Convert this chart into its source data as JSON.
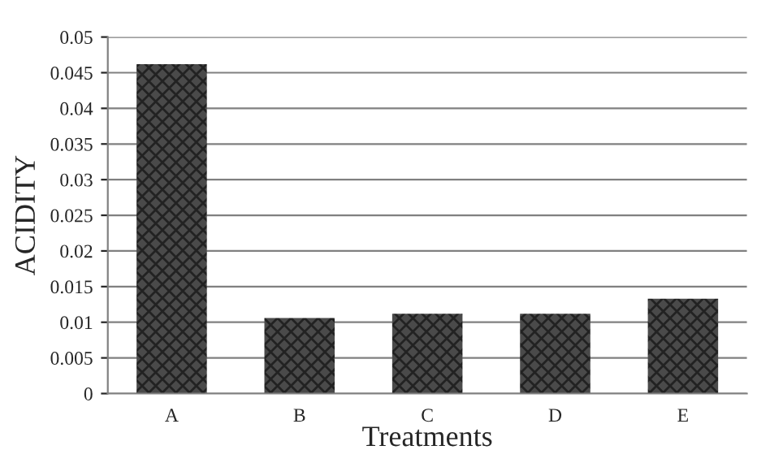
{
  "chart_data": {
    "type": "bar",
    "xlabel": "Treatments",
    "ylabel": "ACIDITY",
    "categories": [
      "A",
      "B",
      "C",
      "D",
      "E"
    ],
    "values": [
      0.0462,
      0.0106,
      0.0112,
      0.0112,
      0.0133
    ],
    "color": "#4a4a4a",
    "ylim": [
      0,
      0.05
    ],
    "yticks": [
      0,
      0.005,
      0.01,
      0.015,
      0.02,
      0.025,
      0.03,
      0.035,
      0.04,
      0.045,
      0.05
    ],
    "grid": "y"
  }
}
